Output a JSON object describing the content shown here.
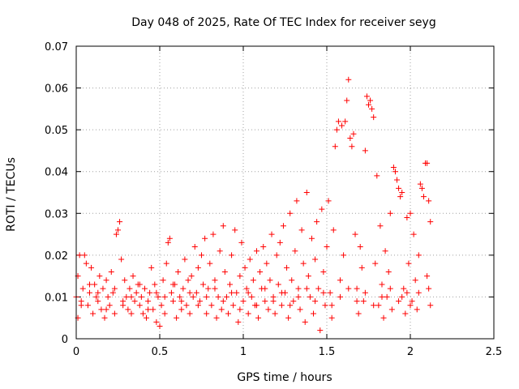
{
  "chart_data": {
    "type": "scatter",
    "title": "Day 048 of 2025, Rate Of TEC Index for receiver seyg",
    "xlabel": "GPS time / hours",
    "ylabel": "ROTI / TECUs",
    "xlim": [
      0,
      2.5
    ],
    "ylim": [
      0,
      0.07
    ],
    "x_ticks": [
      "0",
      "0.5",
      "1",
      "1.5",
      "2",
      "2.5"
    ],
    "y_ticks": [
      "0",
      "0.01",
      "0.02",
      "0.03",
      "0.04",
      "0.05",
      "0.06",
      "0.07"
    ],
    "grid": true,
    "marker": "+",
    "color": "#ff0000",
    "series": [
      {
        "points": [
          [
            0.0,
            0.01
          ],
          [
            0.01,
            0.015
          ],
          [
            0.01,
            0.005
          ],
          [
            0.02,
            0.02
          ],
          [
            0.03,
            0.009
          ],
          [
            0.04,
            0.012
          ],
          [
            0.05,
            0.02
          ],
          [
            0.06,
            0.018
          ],
          [
            0.07,
            0.008
          ],
          [
            0.08,
            0.011
          ],
          [
            0.09,
            0.017
          ],
          [
            0.1,
            0.006
          ],
          [
            0.11,
            0.013
          ],
          [
            0.12,
            0.01
          ],
          [
            0.13,
            0.009
          ],
          [
            0.14,
            0.015
          ],
          [
            0.15,
            0.007
          ],
          [
            0.16,
            0.012
          ],
          [
            0.17,
            0.005
          ],
          [
            0.18,
            0.014
          ],
          [
            0.19,
            0.01
          ],
          [
            0.2,
            0.008
          ],
          [
            0.21,
            0.016
          ],
          [
            0.22,
            0.011
          ],
          [
            0.23,
            0.006
          ],
          [
            0.24,
            0.025
          ],
          [
            0.25,
            0.026
          ],
          [
            0.26,
            0.028
          ],
          [
            0.27,
            0.019
          ],
          [
            0.28,
            0.009
          ],
          [
            0.29,
            0.014
          ],
          [
            0.3,
            0.01
          ],
          [
            0.31,
            0.007
          ],
          [
            0.32,
            0.012
          ],
          [
            0.33,
            0.006
          ],
          [
            0.34,
            0.015
          ],
          [
            0.35,
            0.009
          ],
          [
            0.36,
            0.011
          ],
          [
            0.37,
            0.013
          ],
          [
            0.38,
            0.008
          ],
          [
            0.39,
            0.01
          ],
          [
            0.4,
            0.006
          ],
          [
            0.41,
            0.012
          ],
          [
            0.42,
            0.005
          ],
          [
            0.43,
            0.009
          ],
          [
            0.44,
            0.011
          ],
          [
            0.45,
            0.017
          ],
          [
            0.46,
            0.007
          ],
          [
            0.47,
            0.013
          ],
          [
            0.48,
            0.004
          ],
          [
            0.49,
            0.01
          ],
          [
            0.5,
            0.003
          ],
          [
            0.51,
            0.008
          ],
          [
            0.52,
            0.014
          ],
          [
            0.53,
            0.006
          ],
          [
            0.54,
            0.018
          ],
          [
            0.55,
            0.023
          ],
          [
            0.56,
            0.024
          ],
          [
            0.57,
            0.011
          ],
          [
            0.58,
            0.009
          ],
          [
            0.59,
            0.013
          ],
          [
            0.6,
            0.005
          ],
          [
            0.61,
            0.016
          ],
          [
            0.62,
            0.01
          ],
          [
            0.63,
            0.007
          ],
          [
            0.64,
            0.012
          ],
          [
            0.65,
            0.019
          ],
          [
            0.66,
            0.008
          ],
          [
            0.67,
            0.014
          ],
          [
            0.68,
            0.006
          ],
          [
            0.69,
            0.015
          ],
          [
            0.7,
            0.01
          ],
          [
            0.71,
            0.022
          ],
          [
            0.72,
            0.011
          ],
          [
            0.73,
            0.017
          ],
          [
            0.74,
            0.009
          ],
          [
            0.75,
            0.02
          ],
          [
            0.76,
            0.013
          ],
          [
            0.77,
            0.024
          ],
          [
            0.78,
            0.006
          ],
          [
            0.79,
            0.012
          ],
          [
            0.8,
            0.018
          ],
          [
            0.81,
            0.008
          ],
          [
            0.82,
            0.025
          ],
          [
            0.83,
            0.014
          ],
          [
            0.84,
            0.005
          ],
          [
            0.85,
            0.01
          ],
          [
            0.86,
            0.021
          ],
          [
            0.87,
            0.007
          ],
          [
            0.88,
            0.027
          ],
          [
            0.89,
            0.016
          ],
          [
            0.9,
            0.01
          ],
          [
            0.91,
            0.006
          ],
          [
            0.92,
            0.013
          ],
          [
            0.93,
            0.02
          ],
          [
            0.94,
            0.008
          ],
          [
            0.95,
            0.026
          ],
          [
            0.96,
            0.011
          ],
          [
            0.97,
            0.004
          ],
          [
            0.98,
            0.015
          ],
          [
            0.99,
            0.023
          ],
          [
            1.0,
            0.009
          ],
          [
            1.01,
            0.017
          ],
          [
            1.02,
            0.012
          ],
          [
            1.03,
            0.006
          ],
          [
            1.04,
            0.019
          ],
          [
            1.05,
            0.01
          ],
          [
            1.06,
            0.014
          ],
          [
            1.07,
            0.008
          ],
          [
            1.08,
            0.021
          ],
          [
            1.09,
            0.005
          ],
          [
            1.1,
            0.016
          ],
          [
            1.11,
            0.012
          ],
          [
            1.12,
            0.022
          ],
          [
            1.13,
            0.009
          ],
          [
            1.14,
            0.018
          ],
          [
            1.15,
            0.007
          ],
          [
            1.16,
            0.014
          ],
          [
            1.17,
            0.025
          ],
          [
            1.18,
            0.01
          ],
          [
            1.19,
            0.006
          ],
          [
            1.2,
            0.02
          ],
          [
            1.21,
            0.013
          ],
          [
            1.22,
            0.023
          ],
          [
            1.23,
            0.008
          ],
          [
            1.24,
            0.027
          ],
          [
            1.25,
            0.011
          ],
          [
            1.26,
            0.017
          ],
          [
            1.27,
            0.005
          ],
          [
            1.28,
            0.03
          ],
          [
            1.29,
            0.014
          ],
          [
            1.3,
            0.009
          ],
          [
            1.31,
            0.021
          ],
          [
            1.32,
            0.033
          ],
          [
            1.33,
            0.012
          ],
          [
            1.34,
            0.007
          ],
          [
            1.35,
            0.026
          ],
          [
            1.36,
            0.018
          ],
          [
            1.37,
            0.004
          ],
          [
            1.38,
            0.035
          ],
          [
            1.39,
            0.015
          ],
          [
            1.4,
            0.01
          ],
          [
            1.41,
            0.024
          ],
          [
            1.42,
            0.006
          ],
          [
            1.43,
            0.019
          ],
          [
            1.44,
            0.028
          ],
          [
            1.45,
            0.012
          ],
          [
            1.46,
            0.002
          ],
          [
            1.47,
            0.031
          ],
          [
            1.48,
            0.016
          ],
          [
            1.49,
            0.008
          ],
          [
            1.5,
            0.022
          ],
          [
            1.51,
            0.033
          ],
          [
            1.52,
            0.011
          ],
          [
            1.53,
            0.005
          ],
          [
            1.54,
            0.026
          ],
          [
            1.55,
            0.046
          ],
          [
            1.56,
            0.05
          ],
          [
            1.57,
            0.052
          ],
          [
            1.58,
            0.014
          ],
          [
            1.59,
            0.051
          ],
          [
            1.6,
            0.02
          ],
          [
            1.61,
            0.052
          ],
          [
            1.62,
            0.057
          ],
          [
            1.63,
            0.062
          ],
          [
            1.64,
            0.048
          ],
          [
            1.65,
            0.046
          ],
          [
            1.66,
            0.049
          ],
          [
            1.67,
            0.025
          ],
          [
            1.68,
            0.012
          ],
          [
            1.69,
            0.006
          ],
          [
            1.7,
            0.022
          ],
          [
            1.71,
            0.017
          ],
          [
            1.72,
            0.009
          ],
          [
            1.73,
            0.045
          ],
          [
            1.74,
            0.058
          ],
          [
            1.75,
            0.056
          ],
          [
            1.76,
            0.057
          ],
          [
            1.77,
            0.055
          ],
          [
            1.78,
            0.053
          ],
          [
            1.79,
            0.018
          ],
          [
            1.8,
            0.039
          ],
          [
            1.81,
            0.008
          ],
          [
            1.82,
            0.027
          ],
          [
            1.83,
            0.013
          ],
          [
            1.84,
            0.005
          ],
          [
            1.85,
            0.021
          ],
          [
            1.86,
            0.01
          ],
          [
            1.87,
            0.016
          ],
          [
            1.88,
            0.03
          ],
          [
            1.89,
            0.007
          ],
          [
            1.9,
            0.041
          ],
          [
            1.91,
            0.04
          ],
          [
            1.92,
            0.038
          ],
          [
            1.93,
            0.036
          ],
          [
            1.94,
            0.034
          ],
          [
            1.95,
            0.035
          ],
          [
            1.96,
            0.012
          ],
          [
            1.97,
            0.006
          ],
          [
            1.98,
            0.029
          ],
          [
            1.99,
            0.018
          ],
          [
            2.0,
            0.03
          ],
          [
            2.01,
            0.009
          ],
          [
            2.02,
            0.025
          ],
          [
            2.03,
            0.014
          ],
          [
            2.04,
            0.007
          ],
          [
            2.05,
            0.02
          ],
          [
            2.06,
            0.037
          ],
          [
            2.07,
            0.036
          ],
          [
            2.08,
            0.034
          ],
          [
            2.09,
            0.042
          ],
          [
            2.1,
            0.042
          ],
          [
            2.11,
            0.033
          ],
          [
            2.12,
            0.028
          ],
          [
            2.12,
            0.008
          ],
          [
            2.11,
            0.012
          ],
          [
            2.1,
            0.015
          ],
          [
            2.05,
            0.011
          ],
          [
            2.0,
            0.008
          ],
          [
            1.95,
            0.01
          ],
          [
            0.03,
            0.008
          ],
          [
            0.08,
            0.013
          ],
          [
            0.13,
            0.011
          ],
          [
            0.18,
            0.007
          ],
          [
            0.23,
            0.012
          ],
          [
            0.28,
            0.008
          ],
          [
            0.33,
            0.01
          ],
          [
            0.38,
            0.013
          ],
          [
            0.43,
            0.007
          ],
          [
            0.48,
            0.011
          ],
          [
            0.53,
            0.01
          ],
          [
            0.58,
            0.013
          ],
          [
            0.63,
            0.009
          ],
          [
            0.68,
            0.011
          ],
          [
            0.73,
            0.008
          ],
          [
            0.78,
            0.01
          ],
          [
            0.83,
            0.012
          ],
          [
            0.88,
            0.009
          ],
          [
            0.93,
            0.011
          ],
          [
            0.98,
            0.007
          ],
          [
            1.03,
            0.011
          ],
          [
            1.08,
            0.008
          ],
          [
            1.13,
            0.012
          ],
          [
            1.18,
            0.009
          ],
          [
            1.23,
            0.011
          ],
          [
            1.28,
            0.008
          ],
          [
            1.33,
            0.01
          ],
          [
            1.38,
            0.012
          ],
          [
            1.43,
            0.009
          ],
          [
            1.48,
            0.011
          ],
          [
            1.53,
            0.008
          ],
          [
            1.58,
            0.01
          ],
          [
            1.63,
            0.012
          ],
          [
            1.68,
            0.009
          ],
          [
            1.73,
            0.011
          ],
          [
            1.78,
            0.008
          ],
          [
            1.83,
            0.01
          ],
          [
            1.88,
            0.012
          ],
          [
            1.93,
            0.009
          ],
          [
            1.98,
            0.011
          ]
        ]
      }
    ]
  }
}
